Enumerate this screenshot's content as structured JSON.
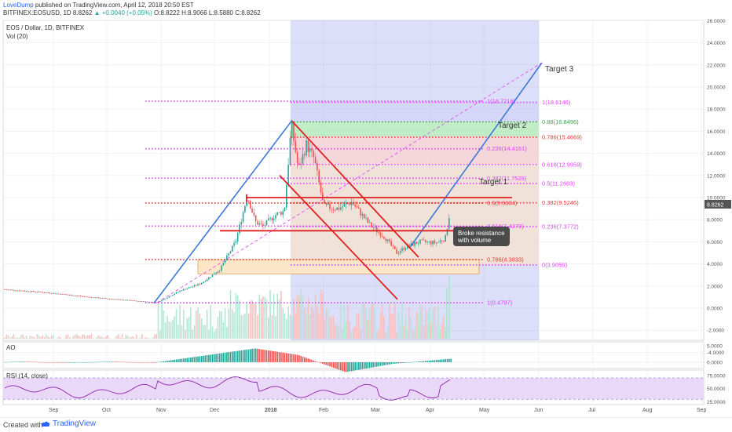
{
  "header": {
    "author": "LoveDump",
    "published": " published on TradingView.com, April 12, 2018 20:50 EST",
    "symbol_line": "BITFINEX:EOSUSD, 1D 8.8262",
    "change": "▲ +0.0040 (+0.05%)",
    "ohlc": "O:8.8222 H:8.9066 L:8.5880 C:8.8262"
  },
  "footer": {
    "created_with": "Created with",
    "brand": "TradingView"
  },
  "colors": {
    "up": "#26a69a",
    "down": "#ef5350",
    "fib": "#e040fb",
    "trend_blue": "#3c78d8",
    "channel_red": "#e02020"
  },
  "chart_data": {
    "type": "candlestick",
    "title": "EOS / Dollar, 1D, BITFINEX",
    "volume_label": "Vol (20)",
    "x_ticks": [
      "Sep",
      "Oct",
      "Nov",
      "Dec",
      "2018",
      "Feb",
      "Mar",
      "Apr",
      "May",
      "Jun",
      "Jul",
      "Aug",
      "Sep"
    ],
    "y_ticks": [
      "26.0000",
      "24.0000",
      "22.0000",
      "20.0000",
      "18.0000",
      "16.0000",
      "14.0000",
      "12.0000",
      "10.0000",
      "8.0000",
      "6.0000",
      "4.0000",
      "2.0000",
      "0.0000",
      "-2.0000",
      "-4.0000"
    ],
    "ylim": [
      -4,
      26
    ],
    "last_price": "8.8262",
    "fib_right": [
      {
        "label": "1(18.6146)",
        "value": 18.6146
      },
      {
        "label": "0.88(16.8496)",
        "value": 16.8496
      },
      {
        "label": "0.786(15.4669)",
        "value": 15.4669
      },
      {
        "label": "0.618(12.9959)",
        "value": 12.9959
      },
      {
        "label": "0.5(11.2603)",
        "value": 11.2603
      },
      {
        "label": "0.382(9.5246)",
        "value": 9.5246
      },
      {
        "label": "0.236(7.3772)",
        "value": 7.3772
      },
      {
        "label": "0(3.9059)",
        "value": 3.9059
      }
    ],
    "fib_left": [
      {
        "label": "0.236(14.4161)",
        "value": 14.4161
      },
      {
        "label": "0.382(11.7529)",
        "value": 11.7529
      },
      {
        "label": "0.5(9.5004)",
        "value": 9.5004
      },
      {
        "label": "0.618(7.4279)",
        "value": 7.4279
      },
      {
        "label": "0.786(4.3833)",
        "value": 4.3833
      },
      {
        "label": "1(0.4797)",
        "value": 0.4797
      }
    ],
    "fib_top": {
      "label": "1(18.7216)",
      "value": 18.72
    },
    "annotations": [
      "Target 3",
      "Target 2",
      "Target 1",
      "Broke resistance with volume"
    ],
    "ao": {
      "label": "AO",
      "y_ticks": [
        "5.0000",
        "0.0000"
      ],
      "ylim": [
        -3,
        6
      ]
    },
    "rsi": {
      "label": "RSI (14, close)",
      "y_ticks": [
        "75.0000",
        "50.0000",
        "25.0000"
      ],
      "ylim": [
        20,
        85
      ],
      "band": [
        30,
        70
      ]
    }
  }
}
